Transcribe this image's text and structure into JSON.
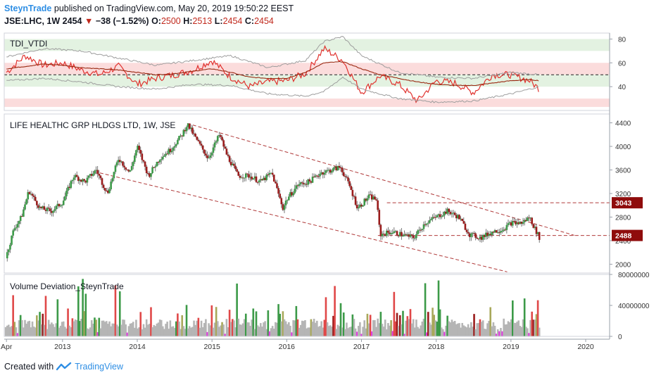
{
  "header": {
    "publisher": "SteynTrade",
    "published_text": "published on TradingView.com, May 20, 2019 19:50:22 EEST",
    "symbol": "JSE:LHC, 1W",
    "last": "2454",
    "change": "−38 (−1.52%)",
    "o_label": "O:",
    "o_value": "2500",
    "h_label": "H:",
    "h_value": "2513",
    "l_label": "L:",
    "l_value": "2454",
    "c_label": "C:",
    "c_value": "2454"
  },
  "footer": {
    "created_with": "Created with",
    "brand": "TradingView"
  },
  "colors": {
    "up": "#3c9a48",
    "down": "#9a1c1c",
    "wick": "#555555",
    "trend": "#b03a3a",
    "price_tag_bg": "#8f0c0c",
    "zone_green": "#e3f2e1",
    "zone_red": "#fbdcdc",
    "grey_volume": "#b5b5b5",
    "olive_volume": "#a8a85a",
    "magenta_volume": "#e040e0"
  },
  "chart_data": [
    {
      "type": "line",
      "title": "TDI_VTDI",
      "ylim": [
        20,
        85
      ],
      "yticks": [
        "80",
        "60",
        "40"
      ],
      "ytick_values": [
        80,
        60,
        40
      ],
      "mid_level": 50,
      "zones": [
        [
          70,
          80,
          "green"
        ],
        [
          50,
          60,
          "red"
        ],
        [
          40,
          50,
          "green"
        ],
        [
          23,
          30,
          "red"
        ]
      ],
      "series": [
        {
          "values_x": [
            2012.25,
            2012.5,
            2012.75,
            2013.0,
            2013.25,
            2013.5,
            2013.75,
            2014.0,
            2014.25,
            2014.5,
            2014.75,
            2015.0,
            2015.25,
            2015.5,
            2015.75,
            2016.0,
            2016.25,
            2016.5,
            2016.75,
            2017.0,
            2017.25,
            2017.5,
            2017.75,
            2018.0,
            2018.25,
            2018.5,
            2018.75,
            2019.0,
            2019.25,
            2019.38
          ],
          "values": [
            52,
            66,
            58,
            60,
            54,
            50,
            57,
            42,
            47,
            50,
            54,
            62,
            48,
            40,
            44,
            45,
            51,
            72,
            62,
            35,
            49,
            42,
            28,
            45,
            43,
            35,
            50,
            50,
            45,
            38
          ]
        },
        {
          "values_x": [
            2012.25,
            2012.5,
            2012.75,
            2013.0,
            2013.25,
            2013.5,
            2013.75,
            2014.0,
            2014.25,
            2014.5,
            2014.75,
            2015.0,
            2015.25,
            2015.5,
            2015.75,
            2016.0,
            2016.25,
            2016.5,
            2016.75,
            2017.0,
            2017.25,
            2017.5,
            2017.75,
            2018.0,
            2018.25,
            2018.5,
            2018.75,
            2019.0,
            2019.25,
            2019.38
          ],
          "values": [
            55,
            57,
            59,
            58,
            56,
            55,
            54,
            52,
            50,
            51,
            53,
            55,
            52,
            48,
            47,
            47,
            52,
            60,
            61,
            55,
            50,
            47,
            44,
            42,
            41,
            41,
            43,
            45,
            46,
            45
          ]
        },
        {
          "values_x": [
            2012.25,
            2012.75,
            2013.25,
            2013.75,
            2014.25,
            2014.75,
            2015.25,
            2015.75,
            2016.25,
            2016.5,
            2016.75,
            2017.0,
            2017.5,
            2018.0,
            2018.5,
            2019.0,
            2019.38
          ],
          "values": [
            65,
            72,
            70,
            64,
            58,
            62,
            66,
            56,
            62,
            78,
            82,
            66,
            52,
            48,
            47,
            52,
            50
          ]
        },
        {
          "values_x": [
            2012.25,
            2012.75,
            2013.25,
            2013.75,
            2014.25,
            2014.75,
            2015.25,
            2015.75,
            2016.25,
            2016.5,
            2016.75,
            2017.0,
            2017.5,
            2018.0,
            2018.5,
            2019.0,
            2019.38
          ],
          "values": [
            45,
            47,
            44,
            40,
            38,
            42,
            41,
            34,
            32,
            36,
            48,
            38,
            30,
            27,
            28,
            34,
            40
          ]
        }
      ]
    },
    {
      "type": "line",
      "title": "LIFE HEALTHC GRP HLDGS LTD, 1W, JSE",
      "ylim": [
        1850,
        4550
      ],
      "yticks": [
        "4400",
        "4000",
        "3600",
        "3200",
        "2800",
        "2400",
        "2000"
      ],
      "ytick_values": [
        4400,
        4000,
        3600,
        3200,
        2800,
        2400,
        2000
      ],
      "x_ticks": [
        "Apr",
        "2013",
        "2014",
        "2015",
        "2016",
        "2017",
        "2018",
        "2019",
        "2020"
      ],
      "x_tick_values": [
        2012.25,
        2013.0,
        2014.0,
        2015.0,
        2016.0,
        2017.0,
        2018.0,
        2019.0,
        2020.0
      ],
      "series": [
        {
          "values_x": [
            2012.24,
            2012.35,
            2012.45,
            2012.55,
            2012.7,
            2012.85,
            2013.0,
            2013.15,
            2013.3,
            2013.45,
            2013.6,
            2013.75,
            2013.9,
            2014.0,
            2014.15,
            2014.3,
            2014.45,
            2014.6,
            2014.67,
            2014.8,
            2014.95,
            2015.1,
            2015.2,
            2015.35,
            2015.5,
            2015.65,
            2015.8,
            2015.95,
            2016.0,
            2016.15,
            2016.3,
            2016.45,
            2016.6,
            2016.72,
            2016.85,
            2016.95,
            2017.1,
            2017.2,
            2017.25,
            2017.4,
            2017.55,
            2017.7,
            2017.85,
            2018.0,
            2018.15,
            2018.3,
            2018.45,
            2018.6,
            2018.75,
            2018.9,
            2019.0,
            2019.15,
            2019.25,
            2019.32,
            2019.38
          ],
          "values": [
            2100,
            2600,
            2800,
            3250,
            2950,
            2900,
            3050,
            3500,
            3400,
            3600,
            3200,
            3800,
            3550,
            4000,
            3500,
            3800,
            3950,
            4200,
            4380,
            4100,
            3800,
            4200,
            3850,
            3500,
            3500,
            3400,
            3550,
            2950,
            3100,
            3350,
            3400,
            3550,
            3600,
            3650,
            3300,
            2950,
            3150,
            3100,
            2500,
            2550,
            2500,
            2450,
            2700,
            2800,
            2900,
            2800,
            2500,
            2450,
            2550,
            2600,
            2700,
            2700,
            2800,
            2600,
            2454
          ]
        }
      ],
      "levels": [
        {
          "value": 3043,
          "label": "3043",
          "from_x": 2017.34
        },
        {
          "value": 2488,
          "label": "2488",
          "from_x": 2017.22
        }
      ],
      "channel": [
        {
          "x": [
            2014.67,
            2019.85
          ],
          "y": [
            4390,
            2490
          ]
        },
        {
          "x": [
            2013.5,
            2018.95
          ],
          "y": [
            3550,
            1870
          ]
        }
      ]
    },
    {
      "type": "bar",
      "title": "Volume Deviation_SteynTrade",
      "ylim": [
        0,
        80000000
      ],
      "yticks": [
        "80000000",
        "40000000",
        "0"
      ],
      "ytick_values": [
        80000000,
        40000000,
        0
      ]
    }
  ]
}
